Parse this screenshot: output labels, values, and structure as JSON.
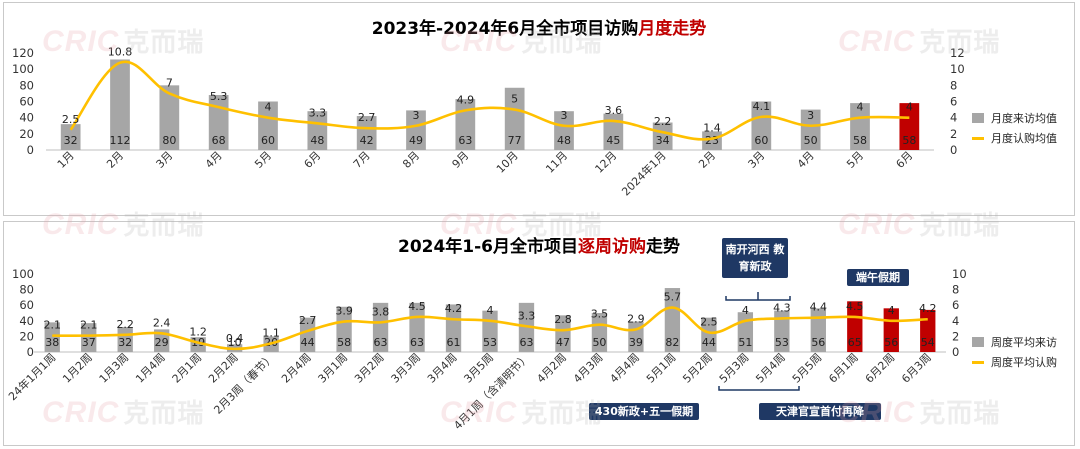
{
  "watermark": {
    "brand": "CRIC",
    "cn": "克而瑞"
  },
  "colors": {
    "bar": "#a6a6a6",
    "bar_highlight": "#c00000",
    "line": "#ffc000",
    "callout": "#1f3864"
  },
  "top": {
    "title_pre": "2023年-2024年6月全市项目访购",
    "title_hl": "月度走势",
    "legend": {
      "bar": "月度来访均值",
      "line": "月度认购均值"
    }
  },
  "bottom": {
    "title_pre": "2024年1-6月全市项目",
    "title_hl": "逐周访购",
    "title_post": "走势",
    "legend": {
      "bar": "周度平均来访",
      "line": "周度平均认购"
    },
    "callouts": {
      "south": "南开河西 教育新政",
      "dragon": "端午假期",
      "may": "430新政+五一假期",
      "tianjin": "天津官宣首付再降"
    }
  },
  "chart_data": [
    {
      "type": "bar",
      "title": "2023年-2024年6月全市项目访购月度走势",
      "categories": [
        "1月",
        "2月",
        "3月",
        "4月",
        "5月",
        "6月",
        "7月",
        "8月",
        "9月",
        "10月",
        "11月",
        "12月",
        "2024年1月",
        "2月",
        "3月",
        "4月",
        "5月",
        "6月"
      ],
      "series": [
        {
          "name": "月度来访均值",
          "type": "bar",
          "axis": "left",
          "values": [
            32,
            112,
            80,
            68,
            60,
            48,
            42,
            49,
            63,
            77,
            48,
            45,
            34,
            23,
            60,
            50,
            58,
            58
          ]
        },
        {
          "name": "月度认购均值",
          "type": "line",
          "axis": "right",
          "values": [
            2.5,
            10.8,
            7,
            5.3,
            4,
            3.3,
            2.7,
            3,
            4.9,
            5,
            3,
            3.6,
            2.2,
            1.4,
            4.1,
            3,
            4,
            4
          ]
        }
      ],
      "highlight_index": [
        17
      ],
      "ylim_left": [
        0,
        120
      ],
      "yticks_left": [
        0,
        20,
        40,
        60,
        80,
        100,
        120
      ],
      "ylim_right": [
        0,
        12
      ],
      "yticks_right": [
        0,
        2,
        4,
        6,
        8,
        10,
        12
      ],
      "legend_position": "right"
    },
    {
      "type": "bar",
      "title": "2024年1-6月全市项目逐周访购走势",
      "categories": [
        "24年1月1周",
        "1月2周",
        "1月3周",
        "1月4周",
        "2月1周",
        "2月2周",
        "2月3周（春节）",
        "2月4周",
        "3月1周",
        "3月2周",
        "3月3周",
        "3月4周",
        "3月5周",
        "4月1周（含清明节）",
        "4月2周",
        "4月3周",
        "4月4周",
        "5月1周",
        "5月2周",
        "5月3周",
        "5月4周",
        "5月5周",
        "6月1周",
        "6月2周",
        "6月3周"
      ],
      "series": [
        {
          "name": "周度平均来访",
          "type": "bar",
          "axis": "left",
          "values": [
            38,
            37,
            32,
            29,
            19,
            10,
            20,
            44,
            58,
            63,
            63,
            61,
            53,
            63,
            47,
            50,
            39,
            82,
            44,
            51,
            53,
            56,
            65,
            56,
            54
          ]
        },
        {
          "name": "周度平均认购",
          "type": "line",
          "axis": "right",
          "values": [
            2.1,
            2.1,
            2.2,
            2.4,
            1.2,
            0.4,
            1.1,
            2.7,
            3.9,
            3.8,
            4.5,
            4.2,
            4,
            3.3,
            2.8,
            3.5,
            2.9,
            5.7,
            2.5,
            4,
            4.3,
            4.4,
            4.5,
            4,
            4.2
          ]
        }
      ],
      "highlight_index": [
        22,
        23,
        24
      ],
      "ylim_left": [
        0,
        100
      ],
      "yticks_left": [
        0,
        20,
        40,
        60,
        80,
        100
      ],
      "ylim_right": [
        0,
        10
      ],
      "yticks_right": [
        0,
        2,
        4,
        6,
        8,
        10
      ],
      "legend_position": "right"
    }
  ]
}
